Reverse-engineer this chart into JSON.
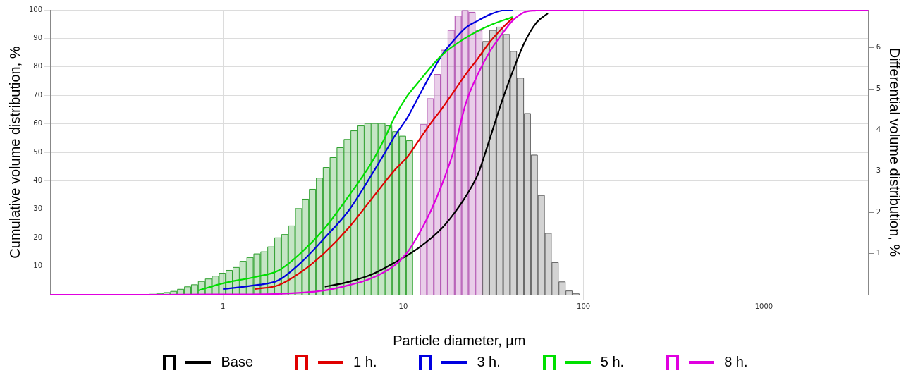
{
  "chart_data": {
    "type": "histogram",
    "xlabel": "Particle diameter, µm",
    "ylabel": "Cumulative volume distribution, %",
    "y2label": "Differential volume distribution, %",
    "log": "x",
    "grid": true,
    "legend": "bottom",
    "marker": "none",
    "line_style": "solid",
    "xlim": [
      0.11,
      3800
    ],
    "xticks": [
      1,
      10,
      100,
      1000
    ],
    "ylim": [
      0,
      100
    ],
    "yticks": [
      10,
      20,
      30,
      40,
      50,
      60,
      70,
      80,
      90,
      100
    ],
    "y2lim": [
      0,
      6.92
    ],
    "y2ticks": [
      1,
      2,
      3,
      4,
      5,
      6
    ],
    "bins": [
      0.3,
      0.328,
      0.358,
      0.391,
      0.427,
      0.467,
      0.51,
      0.557,
      0.609,
      0.665,
      0.727,
      0.795,
      0.868,
      0.949,
      1.036,
      1.132,
      1.237,
      1.352,
      1.477,
      1.614,
      1.763,
      1.927,
      2.105,
      2.3,
      2.513,
      2.746,
      3.0,
      3.28,
      3.58,
      3.91,
      4.27,
      4.67,
      5.1,
      5.57,
      6.09,
      6.65,
      7.27,
      7.95,
      8.68,
      9.49,
      10.36,
      11.32,
      12.37,
      13.52,
      14.77,
      16.14,
      17.63,
      19.27,
      21.05,
      23.0,
      25.13,
      27.46,
      30.0,
      32.8,
      35.8,
      39.1,
      42.7,
      46.7,
      51.0,
      55.7,
      60.9,
      66.5,
      72.7,
      79.5,
      86.8,
      94.9
    ],
    "series": [
      {
        "axis": "y2",
        "color": "#606060",
        "values": [
          null,
          null,
          null,
          null,
          null,
          null,
          null,
          null,
          null,
          null,
          null,
          null,
          null,
          null,
          null,
          null,
          null,
          null,
          null,
          null,
          null,
          null,
          null,
          null,
          null,
          null,
          null,
          null,
          null,
          null,
          null,
          null,
          null,
          null,
          null,
          null,
          null,
          null,
          null,
          null,
          null,
          null,
          null,
          null,
          null,
          null,
          null,
          null,
          null,
          null,
          null,
          6.16,
          6.43,
          6.51,
          6.33,
          5.92,
          5.27,
          4.41,
          3.4,
          2.42,
          1.5,
          0.79,
          0.32,
          0.1,
          0.03
        ]
      },
      {
        "axis": "y2",
        "color": "#b050b0",
        "values": [
          null,
          null,
          null,
          null,
          null,
          null,
          null,
          null,
          null,
          null,
          null,
          null,
          null,
          null,
          null,
          null,
          null,
          null,
          null,
          null,
          null,
          null,
          null,
          null,
          null,
          null,
          null,
          null,
          null,
          null,
          null,
          null,
          null,
          null,
          null,
          null,
          null,
          null,
          null,
          null,
          null,
          null,
          4.14,
          4.77,
          5.36,
          5.95,
          6.43,
          6.78,
          6.91,
          6.87,
          6.42,
          null,
          null,
          null,
          null,
          null,
          null,
          null,
          null,
          null,
          null,
          null,
          null,
          null,
          null
        ]
      },
      {
        "axis": "y2",
        "color": "#30a030",
        "values": [
          0,
          0.01,
          0.01,
          0.02,
          0.04,
          0.06,
          0.09,
          0.14,
          0.2,
          0.25,
          0.33,
          0.39,
          0.46,
          0.53,
          0.6,
          0.67,
          0.82,
          0.91,
          1.0,
          1.05,
          1.17,
          1.39,
          1.47,
          1.68,
          2.1,
          2.33,
          2.57,
          2.84,
          3.1,
          3.34,
          3.58,
          3.78,
          3.99,
          4.11,
          4.17,
          4.17,
          4.17,
          4.11,
          3.97,
          3.86,
          3.75,
          null,
          null,
          null,
          null,
          null,
          null,
          null,
          null,
          null,
          null,
          null,
          null,
          null,
          null,
          null,
          null,
          null,
          null,
          null,
          null,
          null,
          null,
          null,
          null
        ]
      },
      {
        "type": "line",
        "name": "Base",
        "color": "#000000",
        "x": [
          3.67,
          4.96,
          6.69,
          9.03,
          12.2,
          16.4,
          19.1,
          22.2,
          25.9,
          30.0,
          34.9,
          40.4,
          47.0,
          54.6,
          63.4
        ],
        "values": [
          2.8,
          4.5,
          7.1,
          11.4,
          16.5,
          23.4,
          28.5,
          34.5,
          42.2,
          54.2,
          67.1,
          78.3,
          88.5,
          95.4,
          98.8
        ]
      },
      {
        "type": "line",
        "name": "1 h.",
        "color": "#e00000",
        "x": [
          1.5,
          2.02,
          2.72,
          3.67,
          4.96,
          6.69,
          9.03,
          10.5,
          12.2,
          14.2,
          16.4,
          19.1,
          22.2,
          25.9,
          30.0,
          34.9,
          40.4
        ],
        "values": [
          2.0,
          3.3,
          8.0,
          14.8,
          23.4,
          33.7,
          44.0,
          48.3,
          54.2,
          60.2,
          65.4,
          71.4,
          77.4,
          82.9,
          88.5,
          93.2,
          97.1
        ]
      },
      {
        "type": "line",
        "name": "3 h.",
        "color": "#0000e0",
        "x": [
          1.0,
          1.5,
          2.02,
          2.72,
          3.67,
          4.96,
          6.69,
          7.78,
          9.03,
          10.5,
          12.2,
          14.2,
          16.4,
          19.1,
          22.2,
          25.9,
          30.0,
          34.9,
          40.4
        ],
        "values": [
          2.0,
          3.3,
          5.0,
          11.4,
          20.0,
          29.4,
          42.2,
          49.1,
          56.0,
          62.0,
          69.7,
          77.4,
          84.2,
          89.4,
          93.7,
          96.2,
          98.3,
          99.7,
          100
        ]
      },
      {
        "type": "line",
        "name": "5 h.",
        "color": "#00e000",
        "x": [
          0.73,
          1.0,
          1.5,
          2.02,
          2.72,
          3.67,
          4.96,
          6.69,
          7.78,
          9.03,
          10.5,
          12.2,
          14.2,
          16.4,
          22.2,
          30.0,
          40.4
        ],
        "values": [
          1.5,
          4.0,
          6.2,
          8.4,
          14.8,
          23.4,
          34.5,
          46.5,
          54.2,
          62.8,
          69.7,
          74.8,
          79.9,
          84.2,
          90.2,
          94.5,
          97.5
        ]
      },
      {
        "type": "line",
        "name": "8 h.",
        "color": "#e000e0",
        "x": [
          0.11,
          0.5,
          1.0,
          2.02,
          3.67,
          4.96,
          6.69,
          9.03,
          10.5,
          12.2,
          14.2,
          16.4,
          19.1,
          22.2,
          25.9,
          30.0,
          34.9,
          40.4,
          47.0,
          54.6,
          60,
          3800
        ],
        "values": [
          0,
          0,
          0.1,
          0.3,
          1.5,
          3.3,
          5.8,
          10.5,
          14.8,
          21.3,
          29.4,
          38.8,
          50.8,
          67.1,
          77.4,
          85.1,
          91.1,
          96.2,
          99.2,
          99.8,
          100,
          100
        ]
      }
    ]
  }
}
